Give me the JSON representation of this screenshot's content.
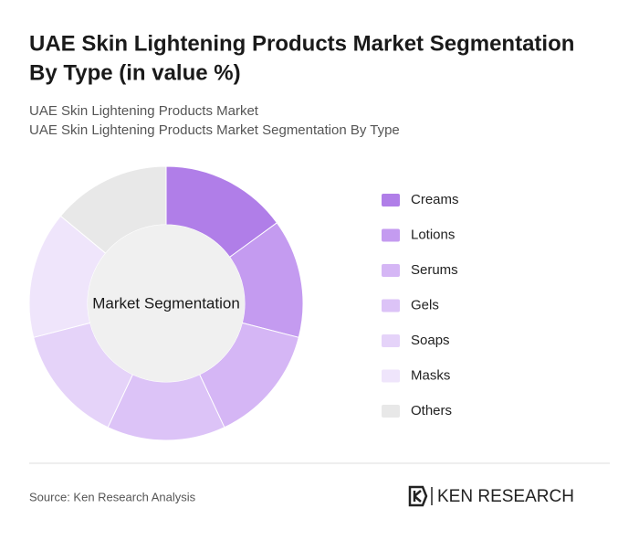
{
  "chart_data": {
    "type": "donut",
    "title": [
      "UAE Skin Lightening Products Market Segmentation",
      "By Type (in value %)"
    ],
    "subtitle": [
      "UAE Skin Lightening Products Market",
      "UAE Skin Lightening Products Market Segmentation By Type"
    ],
    "center_label": "Market Segmentation",
    "categories": [
      "Creams",
      "Lotions",
      "Serums",
      "Gels",
      "Soaps",
      "Masks",
      "Others"
    ],
    "values": [
      15,
      14,
      14,
      14,
      14,
      15,
      14
    ],
    "colors": [
      "#b07ee8",
      "#c49bf0",
      "#d5b6f5",
      "#dcc3f7",
      "#e5d3f9",
      "#efe5fb",
      "#e8e8e8"
    ],
    "source": "Source: Ken Research Analysis",
    "logo": "KEN RESEARCH"
  }
}
